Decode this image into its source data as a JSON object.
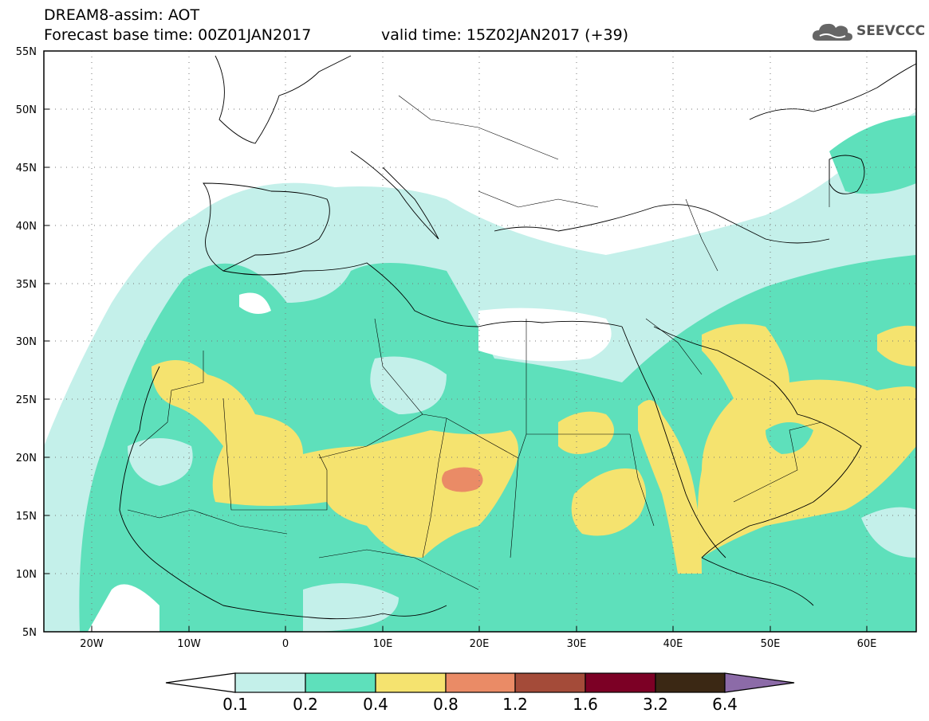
{
  "header": {
    "title": "DREAM8-assim: AOT",
    "base_time_label": "Forecast base time: 00Z01JAN2017",
    "valid_time_label": "valid time: 15Z02JAN2017 (+39)"
  },
  "logo": {
    "text": "SEEVCCC",
    "icon": "cloud-icon"
  },
  "map": {
    "lat_ticks": [
      "55N",
      "50N",
      "45N",
      "40N",
      "35N",
      "30N",
      "25N",
      "20N",
      "15N",
      "10N",
      "5N"
    ],
    "lon_ticks": [
      "20W",
      "10W",
      "0",
      "10E",
      "20E",
      "30E",
      "40E",
      "50E",
      "60E"
    ],
    "lat_range": [
      5,
      55
    ],
    "lon_range": [
      -25,
      65
    ],
    "grid": "dotted",
    "field": "AOT"
  },
  "colorbar": {
    "levels": [
      "0.1",
      "0.2",
      "0.4",
      "0.8",
      "1.2",
      "1.6",
      "3.2",
      "6.4"
    ],
    "colors": [
      "#ffffff",
      "#c4f0ea",
      "#5ee0bb",
      "#f5e36f",
      "#ea8b66",
      "#a44b39",
      "#7c0025",
      "#3b2814",
      "#8c6ba8"
    ]
  }
}
